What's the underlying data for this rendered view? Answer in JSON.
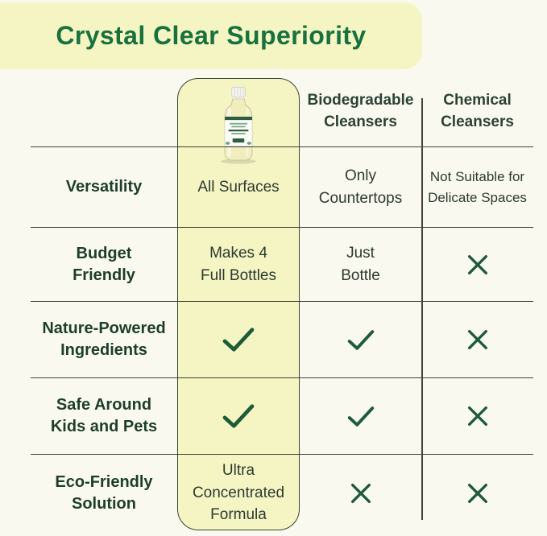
{
  "title": "Crystal Clear Superiority",
  "product": {
    "image": "cleanser-bottle"
  },
  "table": {
    "competitor_headers": [
      "Biodegradable\nCleansers",
      "Chemical\nCleansers"
    ],
    "rows": [
      {
        "label": "Versatility",
        "cells": [
          {
            "type": "text",
            "value": "All Surfaces"
          },
          {
            "type": "text",
            "value": "Only\nCountertops"
          },
          {
            "type": "text",
            "value": "Not Suitable for\nDelicate Spaces"
          }
        ]
      },
      {
        "label": "Budget\nFriendly",
        "cells": [
          {
            "type": "text",
            "value": "Makes 4\nFull Bottles"
          },
          {
            "type": "text",
            "value": "Just\nBottle"
          },
          {
            "type": "cross"
          }
        ]
      },
      {
        "label": "Nature-Powered\nIngredients",
        "cells": [
          {
            "type": "check"
          },
          {
            "type": "check"
          },
          {
            "type": "cross"
          }
        ]
      },
      {
        "label": "Safe Around\nKids and Pets",
        "cells": [
          {
            "type": "check"
          },
          {
            "type": "check"
          },
          {
            "type": "cross"
          }
        ]
      },
      {
        "label": "Eco-Friendly\nSolution",
        "cells": [
          {
            "type": "text",
            "value": "Ultra\nConcentrated\nFormula"
          },
          {
            "type": "cross"
          },
          {
            "type": "cross"
          }
        ]
      }
    ]
  },
  "icons": {
    "check": "check-icon",
    "cross": "cross-icon"
  },
  "colors": {
    "page_bg": "#FAF9F0",
    "highlight_yellow": "#F5F5C4",
    "title_green": "#18713E",
    "label_green": "#1C3E2B",
    "value_text": "#2C3A30",
    "mark_green": "#1D5B39",
    "grid_line": "#3F3F3A",
    "box_border": "#3C4433"
  },
  "chart_data": {
    "type": "table",
    "title": "Crystal Clear Superiority",
    "columns": [
      "Feature",
      "Product (bottle image)",
      "Biodegradable Cleansers",
      "Chemical Cleansers"
    ],
    "rows": [
      [
        "Versatility",
        "All Surfaces",
        "Only Countertops",
        "Not Suitable for Delicate Spaces"
      ],
      [
        "Budget Friendly",
        "Makes 4 Full Bottles",
        "Just Bottle",
        "cross"
      ],
      [
        "Nature-Powered Ingredients",
        "check",
        "check",
        "cross"
      ],
      [
        "Safe Around Kids and Pets",
        "check",
        "check",
        "cross"
      ],
      [
        "Eco-Friendly Solution",
        "Ultra Concentrated Formula",
        "cross",
        "cross"
      ]
    ],
    "layout": "product column highlighted in pale yellow with rounded border; check = advantage, cross = disadvantage"
  }
}
